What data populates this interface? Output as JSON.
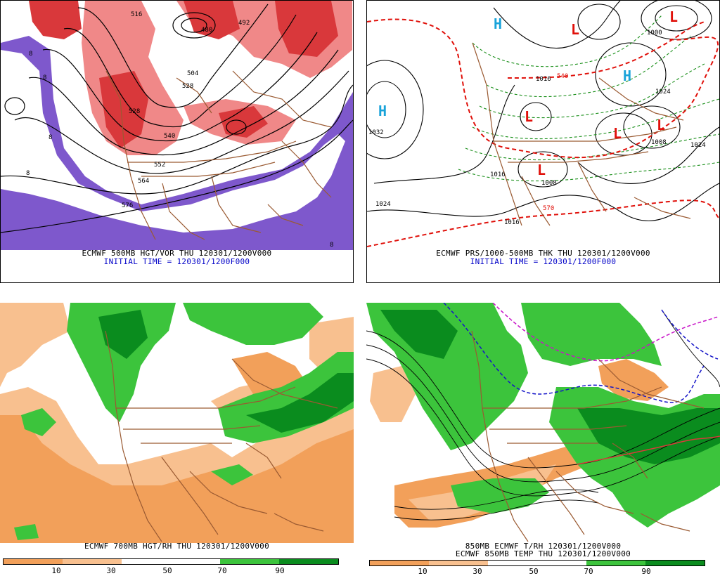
{
  "panels": {
    "top_left": {
      "title": "ECMWF 500MB HGT/VOR THU 120301/1200V000",
      "subtitle": "INITIAL TIME = 120301/1200F000",
      "contour_labels": [
        "576",
        "564",
        "552",
        "540",
        "528",
        "528",
        "516",
        "504",
        "492",
        "480",
        "8",
        "8",
        "8",
        "8",
        "8"
      ]
    },
    "top_right": {
      "title": "ECMWF PRS/1000-500MB THK THU 120301/1200V000",
      "subtitle": "INITIAL TIME = 120301/1200F000",
      "pressure_labels": [
        "1032",
        "1024",
        "1024",
        "1016",
        "1016",
        "1016",
        "1008",
        "1008",
        "1024",
        "1000",
        "570",
        "540"
      ],
      "centers": [
        {
          "type": "H",
          "color": "#19a3d9"
        },
        {
          "type": "H",
          "color": "#19a3d9"
        },
        {
          "type": "H",
          "color": "#19a3d9"
        },
        {
          "type": "L",
          "color": "#e0100a"
        },
        {
          "type": "L",
          "color": "#e0100a"
        },
        {
          "type": "L",
          "color": "#e0100a"
        },
        {
          "type": "L",
          "color": "#e0100a"
        },
        {
          "type": "L",
          "color": "#e0100a"
        },
        {
          "type": "L",
          "color": "#e0100a"
        }
      ]
    },
    "bottom_left": {
      "title": "ECMWF 700MB HGT/RH THU 120301/1200V000",
      "colorbar_ticks": [
        "10",
        "30",
        "50",
        "70",
        "90"
      ]
    },
    "bottom_right": {
      "title": "850MB ECMWF T/RH 120301/1200V000",
      "subtitle": "ECMWF 850MB TEMP THU 120301/1200V000",
      "colorbar_ticks": [
        "10",
        "30",
        "50",
        "70",
        "90"
      ]
    }
  },
  "colors": {
    "dry_dark": "#f2a05a",
    "dry_light": "#f8c08f",
    "moist_light": "#3cc43c",
    "moist_dark": "#0a8c1e",
    "vort_red": "#d9383b",
    "vort_pink": "#f08888",
    "vort_purple": "#7e58cc",
    "border_brown": "#9a5a32"
  }
}
